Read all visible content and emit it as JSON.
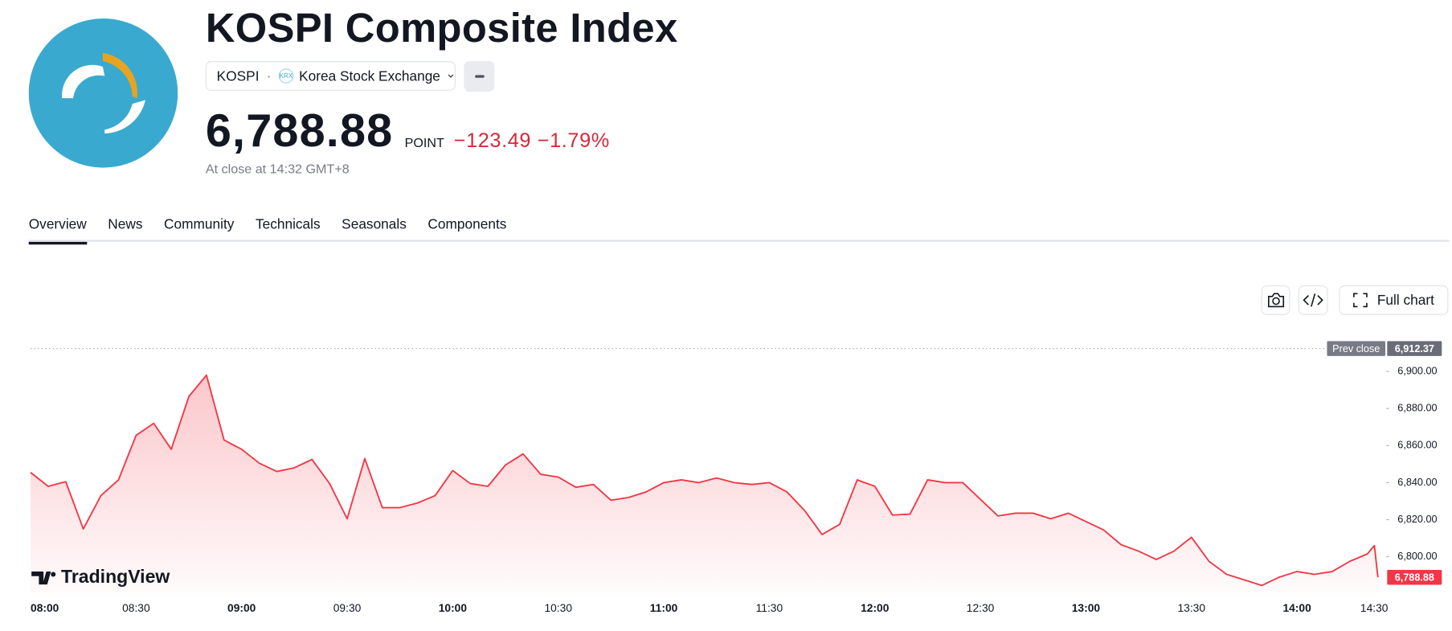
{
  "header": {
    "title": "KOSPI Composite Index",
    "symbol": "KOSPI",
    "exchange_badge": "KRX",
    "exchange": "Korea Stock Exchange",
    "price": "6,788.88",
    "unit": "POINT",
    "change": "−123.49",
    "change_percent": "−1.79%",
    "status": "At close at 14:32 GMT+8"
  },
  "tabs": [
    "Overview",
    "News",
    "Community",
    "Technicals",
    "Seasonals",
    "Components"
  ],
  "toolbar": {
    "full_chart": "Full chart"
  },
  "watermark": "TradingView",
  "chart_data": {
    "type": "line",
    "color": "#f23645",
    "x": [
      "08:00",
      "08:05",
      "08:10",
      "08:15",
      "08:20",
      "08:25",
      "08:30",
      "08:35",
      "08:40",
      "08:45",
      "08:50",
      "08:55",
      "09:00",
      "09:05",
      "09:10",
      "09:15",
      "09:20",
      "09:25",
      "09:30",
      "09:35",
      "09:40",
      "09:45",
      "09:50",
      "09:55",
      "10:00",
      "10:05",
      "10:10",
      "10:15",
      "10:20",
      "10:25",
      "10:30",
      "10:35",
      "10:40",
      "10:45",
      "10:50",
      "10:55",
      "11:00",
      "11:05",
      "11:10",
      "11:15",
      "11:20",
      "11:25",
      "11:30",
      "11:35",
      "11:40",
      "11:45",
      "11:50",
      "11:55",
      "12:00",
      "12:05",
      "12:10",
      "12:15",
      "12:20",
      "12:25",
      "12:30",
      "12:35",
      "12:40",
      "12:45",
      "12:50",
      "12:55",
      "13:00",
      "13:05",
      "13:10",
      "13:15",
      "13:20",
      "13:25",
      "13:30",
      "13:35",
      "13:40",
      "13:45",
      "13:50",
      "13:55",
      "14:00",
      "14:05",
      "14:10",
      "14:15",
      "14:20",
      "14:22",
      "14:23"
    ],
    "values": [
      6845.5,
      6838,
      6840.5,
      6815,
      6833,
      6841.5,
      6865.5,
      6872,
      6858,
      6886.5,
      6898,
      6863,
      6858,
      6850.5,
      6846,
      6848,
      6852.5,
      6839.5,
      6820.5,
      6853,
      6826.5,
      6826.5,
      6829,
      6833,
      6846.5,
      6839.5,
      6838,
      6849.5,
      6855.5,
      6844.5,
      6843,
      6837.5,
      6839,
      6830.5,
      6832,
      6835,
      6840,
      6841.5,
      6840,
      6842.5,
      6840,
      6839,
      6840,
      6835,
      6825,
      6812,
      6817.5,
      6841.5,
      6838,
      6822.5,
      6823,
      6841.5,
      6840,
      6840,
      6831,
      6822,
      6823.5,
      6823.5,
      6820.5,
      6823.5,
      6819,
      6814.5,
      6806.5,
      6803,
      6798.5,
      6803,
      6810.5,
      6797.5,
      6790.5,
      6787.5,
      6784.5,
      6789,
      6792,
      6790.5,
      6792,
      6797.5,
      6801.5,
      6806,
      6788.88
    ],
    "xlim": [
      "08:00",
      "14:23"
    ],
    "xticks": [
      "08:00",
      "08:30",
      "09:00",
      "09:30",
      "10:00",
      "10:30",
      "11:00",
      "11:30",
      "12:00",
      "12:30",
      "13:00",
      "13:30",
      "14:00",
      "14:30"
    ],
    "ylim": [
      6780,
      6920
    ],
    "yticks": [
      {
        "value": 6800,
        "label": "6,800.00"
      },
      {
        "value": 6820,
        "label": "6,820.00"
      },
      {
        "value": 6840,
        "label": "6,840.00"
      },
      {
        "value": 6860,
        "label": "6,860.00"
      },
      {
        "value": 6880,
        "label": "6,880.00"
      },
      {
        "value": 6900,
        "label": "6,900.00"
      }
    ],
    "grid": false,
    "reference_line": {
      "label": "Prev close",
      "value": 6912.37,
      "value_label": "6,912.37"
    }
  }
}
